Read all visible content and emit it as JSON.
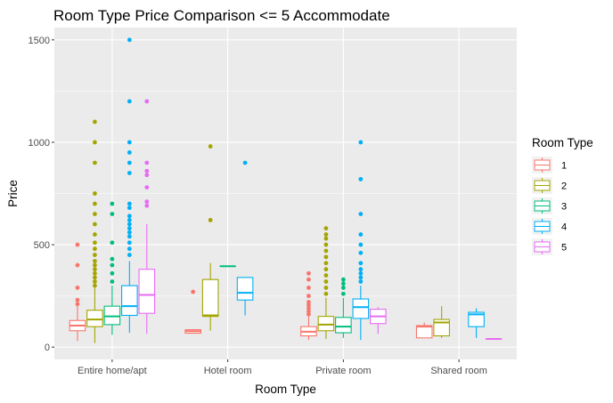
{
  "chart_data": {
    "type": "boxplot",
    "title": "Room Type Price Comparison <= 5 Accommodate",
    "xlabel": "Room Type",
    "ylabel": "Price",
    "ylim": [
      -60,
      1560
    ],
    "yticks": [
      0,
      500,
      1000,
      1500
    ],
    "categories": [
      "Entire home/apt",
      "Hotel room",
      "Private room",
      "Shared room"
    ],
    "legend": {
      "title": "Room Type",
      "position": "right"
    },
    "grid": true,
    "series": [
      {
        "name": "1",
        "color": "#F8766D",
        "boxes": [
          {
            "category": "Entire home/apt",
            "whisker_low": 30,
            "q1": 80,
            "median": 105,
            "q3": 130,
            "whisker_high": 200,
            "outliers": [
              210,
              230,
              290,
              400,
              500
            ]
          },
          {
            "category": "Hotel room",
            "whisker_low": 68,
            "q1": 68,
            "median": 78,
            "q3": 85,
            "whisker_high": 85,
            "outliers": [
              270
            ]
          },
          {
            "category": "Private room",
            "whisker_low": 35,
            "q1": 55,
            "median": 75,
            "q3": 100,
            "whisker_high": 150,
            "outliers": [
              160,
              175,
              190,
              205,
              220,
              250,
              290,
              330,
              360
            ]
          },
          {
            "category": "Shared room",
            "whisker_low": 45,
            "q1": 45,
            "median": 100,
            "q3": 105,
            "whisker_high": 120,
            "outliers": []
          }
        ]
      },
      {
        "name": "2",
        "color": "#A3A500",
        "boxes": [
          {
            "category": "Entire home/apt",
            "whisker_low": 20,
            "q1": 100,
            "median": 135,
            "q3": 180,
            "whisker_high": 290,
            "outliers": [
              300,
              320,
              340,
              360,
              380,
              400,
              420,
              450,
              480,
              510,
              550,
              600,
              650,
              700,
              750,
              900,
              1000,
              1100
            ]
          },
          {
            "category": "Hotel room",
            "whisker_low": 80,
            "q1": 150,
            "median": 155,
            "q3": 330,
            "whisker_high": 410,
            "outliers": [
              620,
              980
            ]
          },
          {
            "category": "Private room",
            "whisker_low": 40,
            "q1": 80,
            "median": 110,
            "q3": 150,
            "whisker_high": 240,
            "outliers": [
              260,
              290,
              320,
              350,
              380,
              410,
              440,
              470,
              500,
              530,
              550,
              580
            ]
          },
          {
            "category": "Shared room",
            "whisker_low": 45,
            "q1": 55,
            "median": 120,
            "q3": 135,
            "whisker_high": 200,
            "outliers": []
          }
        ]
      },
      {
        "name": "3",
        "color": "#00BF7D",
        "boxes": [
          {
            "category": "Entire home/apt",
            "whisker_low": 60,
            "q1": 110,
            "median": 150,
            "q3": 200,
            "whisker_high": 300,
            "outliers": [
              320,
              360,
              400,
              430,
              510,
              650,
              700
            ]
          },
          {
            "category": "Hotel room",
            "whisker_low": 395,
            "q1": 395,
            "median": 395,
            "q3": 395,
            "whisker_high": 395,
            "outliers": []
          },
          {
            "category": "Private room",
            "whisker_low": 45,
            "q1": 70,
            "median": 100,
            "q3": 145,
            "whisker_high": 240,
            "outliers": [
              260,
              290,
              310,
              330
            ]
          }
        ]
      },
      {
        "name": "4",
        "color": "#00B0F6",
        "boxes": [
          {
            "category": "Entire home/apt",
            "whisker_low": 70,
            "q1": 155,
            "median": 200,
            "q3": 300,
            "whisker_high": 420,
            "outliers": [
              450,
              480,
              510,
              540,
              560,
              580,
              600,
              620,
              640,
              680,
              700,
              850,
              900,
              950,
              1000,
              1200,
              1500
            ]
          },
          {
            "category": "Hotel room",
            "whisker_low": 155,
            "q1": 230,
            "median": 265,
            "q3": 340,
            "whisker_high": 340,
            "outliers": [
              900
            ]
          },
          {
            "category": "Private room",
            "whisker_low": 35,
            "q1": 140,
            "median": 195,
            "q3": 235,
            "whisker_high": 300,
            "outliers": [
              320,
              340,
              360,
              380,
              410,
              460,
              500,
              550,
              650,
              820,
              1000
            ]
          },
          {
            "category": "Shared room",
            "whisker_low": 45,
            "q1": 100,
            "median": 160,
            "q3": 170,
            "whisker_high": 190,
            "outliers": []
          }
        ]
      },
      {
        "name": "5",
        "color": "#E76BF3",
        "boxes": [
          {
            "category": "Entire home/apt",
            "whisker_low": 65,
            "q1": 165,
            "median": 255,
            "q3": 380,
            "whisker_high": 600,
            "outliers": [
              690,
              710,
              780,
              840,
              860,
              900,
              1200
            ]
          },
          {
            "category": "Private room",
            "whisker_low": 65,
            "q1": 115,
            "median": 150,
            "q3": 185,
            "whisker_high": 195,
            "outliers": []
          },
          {
            "category": "Shared room",
            "whisker_low": 40,
            "q1": 40,
            "median": 40,
            "q3": 40,
            "whisker_high": 40,
            "outliers": []
          }
        ]
      }
    ]
  }
}
